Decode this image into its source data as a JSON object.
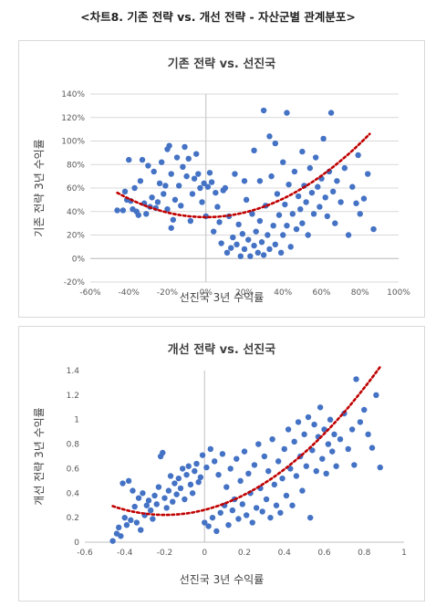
{
  "figure_title": "<차트8. 기존 전략 vs. 개선 전략 - 자산군별 관계분포>",
  "colors": {
    "points": "#4472c4",
    "trend": "#c00000",
    "grid": "#d9d9d9",
    "axis": "#bfbfbf"
  },
  "chart_data": [
    {
      "type": "scatter",
      "title": "기존 전략 vs. 선진국",
      "xlabel": "선진국 3년 수익률",
      "ylabel": "기존 전략 3년 수익률",
      "xlim": [
        -0.6,
        1.0
      ],
      "ylim": [
        -0.2,
        1.4
      ],
      "xticks": [
        -0.6,
        -0.4,
        -0.2,
        0,
        0.2,
        0.4,
        0.6,
        0.8,
        1.0
      ],
      "yticks": [
        -0.2,
        0,
        0.2,
        0.4,
        0.6,
        0.8,
        1.0,
        1.2,
        1.4
      ],
      "xtick_labels": [
        "-60%",
        "-40%",
        "-20%",
        "0%",
        "20%",
        "40%",
        "60%",
        "80%",
        "100%"
      ],
      "ytick_labels": [
        "-20%",
        "0%",
        "20%",
        "40%",
        "60%",
        "80%",
        "100%",
        "120%",
        "140%"
      ],
      "grid": "horizontal",
      "trendline": {
        "type": "polynomial",
        "degree": 2,
        "coefficients": [
          0.3524,
          0.0,
          0.9804
        ],
        "x_range": [
          -0.46,
          0.85
        ]
      },
      "points": [
        [
          -0.46,
          0.41
        ],
        [
          -0.43,
          0.41
        ],
        [
          -0.42,
          0.57
        ],
        [
          -0.41,
          0.5
        ],
        [
          -0.4,
          0.84
        ],
        [
          -0.39,
          0.49
        ],
        [
          -0.38,
          0.42
        ],
        [
          -0.37,
          0.6
        ],
        [
          -0.36,
          0.4
        ],
        [
          -0.35,
          0.37
        ],
        [
          -0.34,
          0.66
        ],
        [
          -0.33,
          0.84
        ],
        [
          -0.32,
          0.47
        ],
        [
          -0.31,
          0.38
        ],
        [
          -0.3,
          0.79
        ],
        [
          -0.29,
          0.44
        ],
        [
          -0.28,
          0.52
        ],
        [
          -0.27,
          0.74
        ],
        [
          -0.26,
          0.43
        ],
        [
          -0.25,
          0.48
        ],
        [
          -0.24,
          0.64
        ],
        [
          -0.23,
          0.82
        ],
        [
          -0.22,
          0.55
        ],
        [
          -0.21,
          0.62
        ],
        [
          -0.2,
          0.93
        ],
        [
          -0.2,
          0.42
        ],
        [
          -0.19,
          0.96
        ],
        [
          -0.18,
          0.72
        ],
        [
          -0.18,
          0.26
        ],
        [
          -0.17,
          0.33
        ],
        [
          -0.16,
          0.5
        ],
        [
          -0.15,
          0.86
        ],
        [
          -0.14,
          0.62
        ],
        [
          -0.13,
          0.45
        ],
        [
          -0.12,
          0.78
        ],
        [
          -0.11,
          0.95
        ],
        [
          -0.1,
          0.7
        ],
        [
          -0.09,
          0.85
        ],
        [
          -0.08,
          0.32
        ],
        [
          -0.07,
          0.55
        ],
        [
          -0.06,
          0.68
        ],
        [
          -0.05,
          0.89
        ],
        [
          -0.04,
          0.72
        ],
        [
          -0.03,
          0.6
        ],
        [
          -0.02,
          0.48
        ],
        [
          -0.01,
          0.64
        ],
        [
          0.0,
          0.36
        ],
        [
          0.01,
          0.61
        ],
        [
          0.02,
          0.73
        ],
        [
          0.03,
          0.65
        ],
        [
          0.04,
          0.23
        ],
        [
          0.05,
          0.56
        ],
        [
          0.06,
          0.44
        ],
        [
          0.07,
          0.31
        ],
        [
          0.08,
          0.13
        ],
        [
          0.09,
          0.58
        ],
        [
          0.1,
          0.6
        ],
        [
          0.11,
          0.05
        ],
        [
          0.12,
          0.36
        ],
        [
          0.13,
          0.09
        ],
        [
          0.14,
          0.18
        ],
        [
          0.15,
          0.72
        ],
        [
          0.16,
          0.12
        ],
        [
          0.17,
          0.29
        ],
        [
          0.18,
          0.02
        ],
        [
          0.19,
          0.21
        ],
        [
          0.2,
          0.66
        ],
        [
          0.2,
          0.08
        ],
        [
          0.21,
          0.5
        ],
        [
          0.22,
          0.16
        ],
        [
          0.23,
          0.02
        ],
        [
          0.24,
          0.38
        ],
        [
          0.25,
          0.92
        ],
        [
          0.25,
          0.11
        ],
        [
          0.26,
          0.23
        ],
        [
          0.27,
          0.05
        ],
        [
          0.28,
          0.66
        ],
        [
          0.28,
          0.32
        ],
        [
          0.29,
          0.14
        ],
        [
          0.3,
          1.26
        ],
        [
          0.3,
          0.03
        ],
        [
          0.31,
          0.45
        ],
        [
          0.32,
          0.2
        ],
        [
          0.33,
          1.04
        ],
        [
          0.33,
          0.08
        ],
        [
          0.34,
          0.7
        ],
        [
          0.35,
          0.28
        ],
        [
          0.36,
          0.98
        ],
        [
          0.36,
          0.12
        ],
        [
          0.37,
          0.55
        ],
        [
          0.38,
          0.37
        ],
        [
          0.39,
          0.05
        ],
        [
          0.4,
          0.82
        ],
        [
          0.4,
          0.2
        ],
        [
          0.41,
          0.46
        ],
        [
          0.42,
          1.24
        ],
        [
          0.42,
          0.28
        ],
        [
          0.43,
          0.63
        ],
        [
          0.44,
          0.1
        ],
        [
          0.45,
          0.38
        ],
        [
          0.46,
          0.74
        ],
        [
          0.47,
          0.25
        ],
        [
          0.48,
          0.53
        ],
        [
          0.49,
          0.42
        ],
        [
          0.5,
          0.91
        ],
        [
          0.5,
          0.3
        ],
        [
          0.51,
          0.62
        ],
        [
          0.52,
          0.48
        ],
        [
          0.53,
          0.2
        ],
        [
          0.54,
          0.77
        ],
        [
          0.55,
          0.56
        ],
        [
          0.56,
          0.38
        ],
        [
          0.57,
          0.86
        ],
        [
          0.58,
          0.61
        ],
        [
          0.59,
          0.44
        ],
        [
          0.6,
          0.68
        ],
        [
          0.61,
          1.02
        ],
        [
          0.62,
          0.52
        ],
        [
          0.63,
          0.36
        ],
        [
          0.64,
          0.74
        ],
        [
          0.65,
          1.24
        ],
        [
          0.66,
          0.57
        ],
        [
          0.67,
          0.3
        ],
        [
          0.68,
          0.66
        ],
        [
          0.7,
          0.48
        ],
        [
          0.72,
          0.77
        ],
        [
          0.74,
          0.2
        ],
        [
          0.76,
          0.61
        ],
        [
          0.78,
          0.47
        ],
        [
          0.79,
          0.88
        ],
        [
          0.8,
          0.38
        ],
        [
          0.82,
          0.51
        ],
        [
          0.84,
          0.72
        ],
        [
          0.87,
          0.25
        ]
      ]
    },
    {
      "type": "scatter",
      "title": "개선 전략 vs. 선진국",
      "xlabel": "선진국 3년 수익률",
      "ylabel": "개선 전략 3년 수익률",
      "xlim": [
        -0.6,
        1.0
      ],
      "ylim": [
        0,
        1.4
      ],
      "xticks": [
        -0.6,
        -0.4,
        -0.2,
        0,
        0.2,
        0.4,
        0.6,
        0.8,
        1.0
      ],
      "yticks": [
        0,
        0.2,
        0.4,
        0.6,
        0.8,
        1.0,
        1.2,
        1.4
      ],
      "xtick_labels": [
        "-0.6",
        "-0.4",
        "-0.2",
        "0",
        "0.2",
        "0.4",
        "0.6",
        "0.8",
        "1"
      ],
      "ytick_labels": [
        "0",
        "0.2",
        "0.4",
        "0.6",
        "0.8",
        "1",
        "1.2",
        "1.4"
      ],
      "grid": "none",
      "trendline": {
        "type": "polynomial",
        "degree": 2,
        "coefficients": [
          0.2635,
          0.4121,
          1.039
        ],
        "x_range": [
          -0.46,
          0.88
        ]
      },
      "points": [
        [
          -0.46,
          0.01
        ],
        [
          -0.44,
          0.07
        ],
        [
          -0.43,
          0.12
        ],
        [
          -0.42,
          0.05
        ],
        [
          -0.41,
          0.48
        ],
        [
          -0.4,
          0.2
        ],
        [
          -0.39,
          0.14
        ],
        [
          -0.38,
          0.5
        ],
        [
          -0.37,
          0.18
        ],
        [
          -0.36,
          0.42
        ],
        [
          -0.35,
          0.29
        ],
        [
          -0.34,
          0.16
        ],
        [
          -0.33,
          0.36
        ],
        [
          -0.32,
          0.1
        ],
        [
          -0.31,
          0.4
        ],
        [
          -0.3,
          0.22
        ],
        [
          -0.29,
          0.3
        ],
        [
          -0.28,
          0.34
        ],
        [
          -0.27,
          0.26
        ],
        [
          -0.26,
          0.19
        ],
        [
          -0.25,
          0.38
        ],
        [
          -0.24,
          0.31
        ],
        [
          -0.23,
          0.45
        ],
        [
          -0.22,
          0.7
        ],
        [
          -0.21,
          0.73
        ],
        [
          -0.2,
          0.36
        ],
        [
          -0.19,
          0.28
        ],
        [
          -0.18,
          0.42
        ],
        [
          -0.17,
          0.54
        ],
        [
          -0.16,
          0.33
        ],
        [
          -0.15,
          0.48
        ],
        [
          -0.14,
          0.39
        ],
        [
          -0.13,
          0.52
        ],
        [
          -0.12,
          0.44
        ],
        [
          -0.11,
          0.6
        ],
        [
          -0.1,
          0.35
        ],
        [
          -0.09,
          0.55
        ],
        [
          -0.08,
          0.62
        ],
        [
          -0.07,
          0.47
        ],
        [
          -0.06,
          0.4
        ],
        [
          -0.05,
          0.58
        ],
        [
          -0.04,
          0.64
        ],
        [
          -0.03,
          0.49
        ],
        [
          -0.02,
          0.53
        ],
        [
          -0.01,
          0.71
        ],
        [
          0.0,
          0.16
        ],
        [
          0.01,
          0.61
        ],
        [
          0.02,
          0.13
        ],
        [
          0.03,
          0.76
        ],
        [
          0.04,
          0.2
        ],
        [
          0.05,
          0.66
        ],
        [
          0.06,
          0.09
        ],
        [
          0.07,
          0.55
        ],
        [
          0.08,
          0.24
        ],
        [
          0.09,
          0.72
        ],
        [
          0.1,
          0.3
        ],
        [
          0.11,
          0.45
        ],
        [
          0.12,
          0.14
        ],
        [
          0.13,
          0.6
        ],
        [
          0.14,
          0.26
        ],
        [
          0.15,
          0.35
        ],
        [
          0.16,
          0.68
        ],
        [
          0.17,
          0.19
        ],
        [
          0.18,
          0.5
        ],
        [
          0.19,
          0.31
        ],
        [
          0.2,
          0.74
        ],
        [
          0.21,
          0.22
        ],
        [
          0.22,
          0.56
        ],
        [
          0.23,
          0.4
        ],
        [
          0.24,
          0.16
        ],
        [
          0.25,
          0.63
        ],
        [
          0.26,
          0.28
        ],
        [
          0.27,
          0.8
        ],
        [
          0.28,
          0.44
        ],
        [
          0.29,
          0.25
        ],
        [
          0.3,
          0.7
        ],
        [
          0.31,
          0.35
        ],
        [
          0.32,
          0.58
        ],
        [
          0.33,
          0.2
        ],
        [
          0.34,
          0.84
        ],
        [
          0.35,
          0.47
        ],
        [
          0.36,
          0.3
        ],
        [
          0.37,
          0.66
        ],
        [
          0.38,
          0.24
        ],
        [
          0.39,
          0.52
        ],
        [
          0.4,
          0.76
        ],
        [
          0.41,
          0.38
        ],
        [
          0.42,
          0.92
        ],
        [
          0.43,
          0.6
        ],
        [
          0.44,
          0.3
        ],
        [
          0.45,
          0.82
        ],
        [
          0.46,
          0.54
        ],
        [
          0.47,
          0.98
        ],
        [
          0.48,
          0.7
        ],
        [
          0.49,
          0.42
        ],
        [
          0.5,
          0.88
        ],
        [
          0.51,
          0.62
        ],
        [
          0.52,
          1.02
        ],
        [
          0.53,
          0.2
        ],
        [
          0.54,
          0.75
        ],
        [
          0.55,
          0.96
        ],
        [
          0.56,
          0.58
        ],
        [
          0.57,
          0.86
        ],
        [
          0.58,
          1.1
        ],
        [
          0.59,
          0.68
        ],
        [
          0.6,
          0.92
        ],
        [
          0.61,
          0.56
        ],
        [
          0.62,
          0.8
        ],
        [
          0.63,
          1.0
        ],
        [
          0.64,
          0.74
        ],
        [
          0.65,
          0.88
        ],
        [
          0.66,
          0.62
        ],
        [
          0.68,
          0.84
        ],
        [
          0.7,
          1.05
        ],
        [
          0.72,
          0.76
        ],
        [
          0.74,
          0.92
        ],
        [
          0.75,
          0.63
        ],
        [
          0.76,
          1.33
        ],
        [
          0.78,
          0.98
        ],
        [
          0.8,
          1.08
        ],
        [
          0.82,
          0.88
        ],
        [
          0.84,
          0.77
        ],
        [
          0.86,
          1.2
        ],
        [
          0.88,
          0.61
        ]
      ]
    }
  ]
}
